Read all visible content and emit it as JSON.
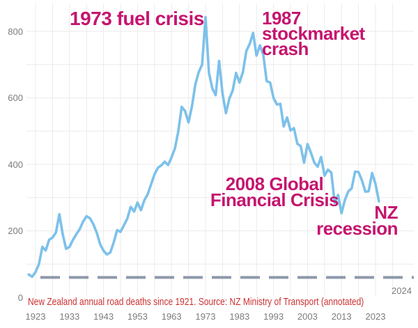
{
  "colors": {
    "line_blue": "#7dc1ea",
    "annotation_magenta": "#c5156f",
    "caption_red": "#cc3232",
    "tick_gray": "#7c7c7c",
    "grid_gray": "#ebebeb",
    "dash_slate": "#8f99ab",
    "background": "#ffffff"
  },
  "caption": "New Zealand annual road deaths since 1921. Source: NZ Ministry of Transport (annotated)",
  "annotations": {
    "fuel_crisis": "1973 fuel crisis",
    "stockmarket": "1987\nstockmarket\ncrash",
    "gfc": "2008 Global\nFinancial Crisis",
    "nz_recession": "NZ\nrecession"
  },
  "chart_data": {
    "type": "line",
    "series_name": "NZ annual road deaths",
    "x_label": "",
    "y_label": "",
    "x_ticks": [
      1923,
      1933,
      1943,
      1953,
      1963,
      1973,
      1983,
      1993,
      2003,
      2013,
      2023
    ],
    "y_ticks": [
      0,
      200,
      400,
      600,
      800
    ],
    "x_range": [
      1920,
      2028
    ],
    "y_range": [
      0,
      884
    ],
    "grid": "on",
    "grid_minor_x_years": 5,
    "grid_minor_y_units": 100,
    "legend": "none",
    "end_label": "2024",
    "reference_line": {
      "style": "dashed",
      "value": 60,
      "label": "2024",
      "color": "#8f99ab"
    },
    "years": [
      1921,
      1922,
      1923,
      1924,
      1925,
      1926,
      1927,
      1928,
      1929,
      1930,
      1931,
      1932,
      1933,
      1934,
      1935,
      1936,
      1937,
      1938,
      1939,
      1940,
      1941,
      1942,
      1943,
      1944,
      1945,
      1946,
      1947,
      1948,
      1949,
      1950,
      1951,
      1952,
      1953,
      1954,
      1955,
      1956,
      1957,
      1958,
      1959,
      1960,
      1961,
      1962,
      1963,
      1964,
      1965,
      1966,
      1967,
      1968,
      1969,
      1970,
      1971,
      1972,
      1973,
      1974,
      1975,
      1976,
      1977,
      1978,
      1979,
      1980,
      1981,
      1982,
      1983,
      1984,
      1985,
      1986,
      1987,
      1988,
      1989,
      1990,
      1991,
      1992,
      1993,
      1994,
      1995,
      1996,
      1997,
      1998,
      1999,
      2000,
      2001,
      2002,
      2003,
      2004,
      2005,
      2006,
      2007,
      2008,
      2009,
      2010,
      2011,
      2012,
      2013,
      2014,
      2015,
      2016,
      2017,
      2018,
      2019,
      2020,
      2021,
      2022,
      2023,
      2024
    ],
    "values": [
      69,
      62,
      76,
      100,
      152,
      141,
      173,
      180,
      195,
      250,
      190,
      146,
      152,
      173,
      190,
      205,
      228,
      244,
      238,
      220,
      195,
      160,
      140,
      129,
      135,
      165,
      202,
      197,
      217,
      237,
      272,
      258,
      285,
      262,
      292,
      310,
      340,
      370,
      390,
      397,
      408,
      398,
      421,
      448,
      500,
      573,
      560,
      526,
      574,
      640,
      677,
      700,
      843,
      676,
      628,
      608,
      711,
      613,
      554,
      598,
      622,
      675,
      646,
      678,
      741,
      762,
      795,
      727,
      758,
      729,
      650,
      646,
      600,
      580,
      582,
      514,
      541,
      502,
      509,
      462,
      455,
      405,
      461,
      435,
      405,
      393,
      422,
      366,
      384,
      375,
      284,
      308,
      253,
      293,
      319,
      328,
      378,
      377,
      352,
      318,
      319,
      374,
      341,
      289
    ]
  }
}
